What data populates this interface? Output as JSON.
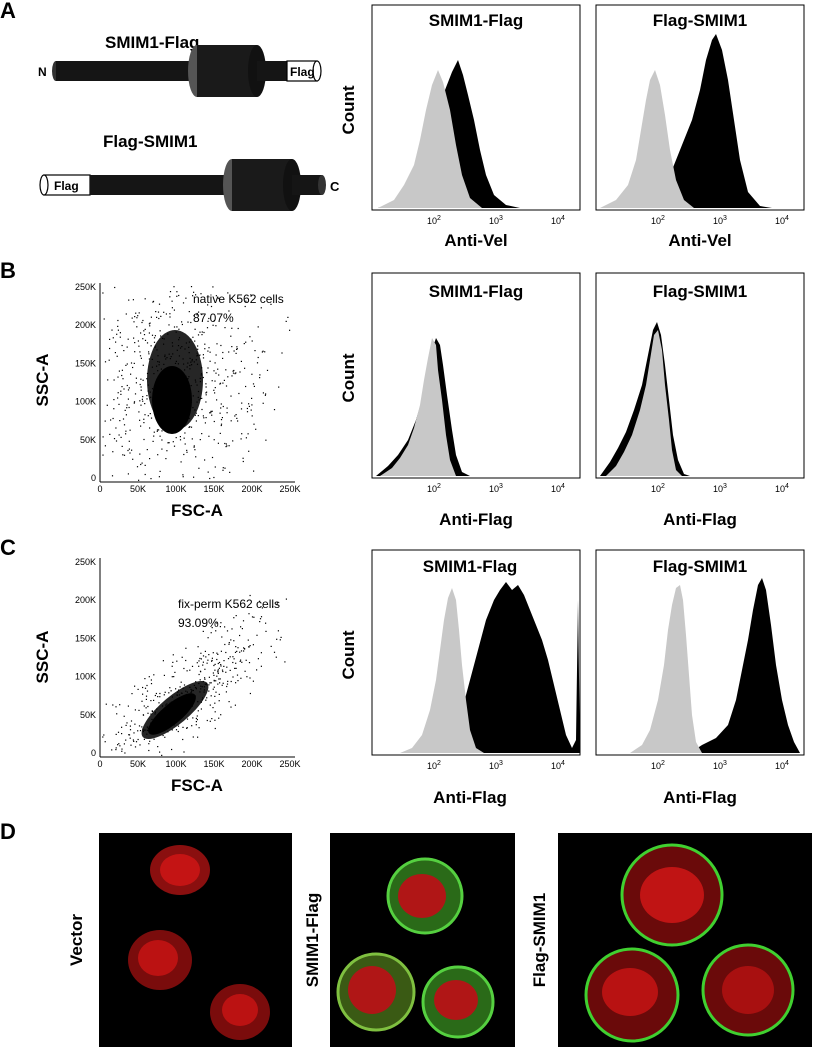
{
  "panels": {
    "A": {
      "letter": "A",
      "construct_1": {
        "name": "SMIM1-Flag",
        "n_term": "N",
        "tag": "Flag"
      },
      "construct_2": {
        "name": "Flag-SMIM1",
        "c_term": "C",
        "tag": "Flag"
      },
      "hist_1": {
        "title": "SMIM1-Flag",
        "ylabel": "Count",
        "xlabel": "Anti-Vel"
      },
      "hist_2": {
        "title": "Flag-SMIM1",
        "xlabel": "Anti-Vel"
      }
    },
    "B": {
      "letter": "B",
      "scatter": {
        "ylabel": "SSC-A",
        "xlabel": "FSC-A",
        "gate_label": "native K562 cells",
        "gate_pct": "87.07%"
      },
      "hist_1": {
        "title": "SMIM1-Flag",
        "ylabel": "Count",
        "xlabel": "Anti-Flag"
      },
      "hist_2": {
        "title": "Flag-SMIM1",
        "xlabel": "Anti-Flag"
      }
    },
    "C": {
      "letter": "C",
      "scatter": {
        "ylabel": "SSC-A",
        "xlabel": "FSC-A",
        "gate_label": "fix-perm K562 cells",
        "gate_pct": "93.09%"
      },
      "hist_1": {
        "title": "SMIM1-Flag",
        "ylabel": "Count",
        "xlabel": "Anti-Flag"
      },
      "hist_2": {
        "title": "Flag-SMIM1",
        "xlabel": "Anti-Flag"
      }
    },
    "D": {
      "letter": "D",
      "image_1": {
        "label": "Vector"
      },
      "image_2": {
        "label": "SMIM1-Flag"
      },
      "image_3": {
        "label": "Flag-SMIM1"
      }
    }
  },
  "scatter_ticks": {
    "y": [
      "250K",
      "200K",
      "150K",
      "100K",
      "50K",
      "0"
    ],
    "x": [
      "0",
      "50K",
      "100K",
      "150K",
      "200K",
      "250K"
    ]
  },
  "hist_ticks": [
    "10",
    "10",
    "10"
  ],
  "hist_tick_exps": [
    "2",
    "3",
    "4"
  ],
  "colors": {
    "control_fill": "#c8c8c8",
    "stained_fill": "#000000",
    "nucleus": "#d01818",
    "membrane": "#33cc33",
    "background": "#000000"
  }
}
